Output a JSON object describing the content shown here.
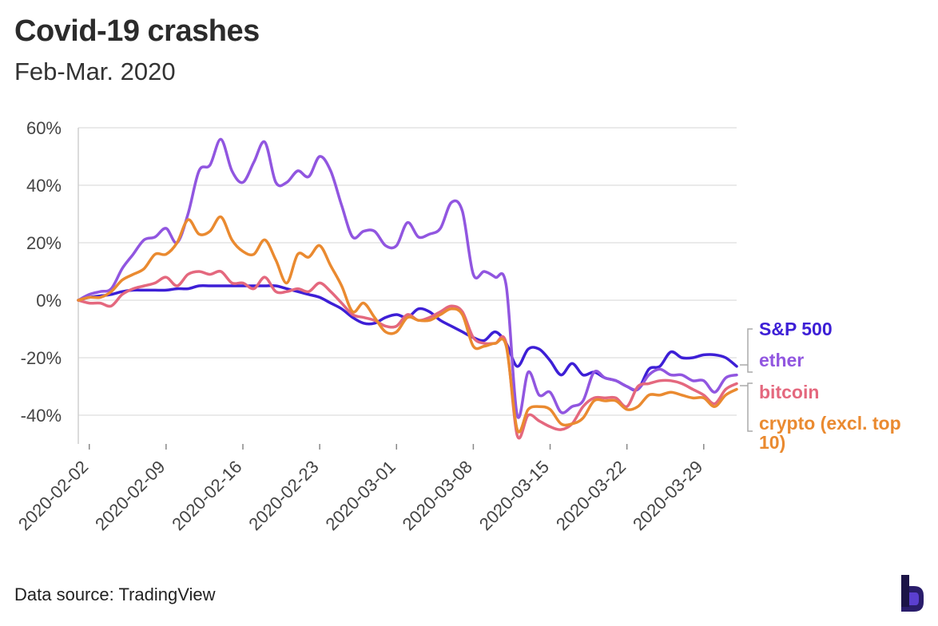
{
  "title": "Covid-19 crashes",
  "subtitle": "Feb-Mar. 2020",
  "footer": {
    "source": "Data source: TradingView"
  },
  "brand": {
    "logo": "b-logo-icon"
  },
  "chart_data": {
    "type": "line",
    "title": "Covid-19 crashes",
    "subtitle": "Feb-Mar. 2020",
    "xlabel": "",
    "ylabel": "",
    "xlim": [
      "2020-02-01",
      "2020-04-01"
    ],
    "ylim": [
      -50,
      60
    ],
    "y_ticks": [
      60,
      40,
      20,
      0,
      -20,
      -40
    ],
    "y_tick_labels": [
      "60%",
      "40%",
      "20%",
      "0%",
      "-20%",
      "-40%"
    ],
    "x_ticks": [
      "2020-02-02",
      "2020-02-09",
      "2020-02-16",
      "2020-02-23",
      "2020-03-01",
      "2020-03-08",
      "2020-03-15",
      "2020-03-22",
      "2020-03-29"
    ],
    "grid": true,
    "legend": "right, inline labels",
    "series": [
      {
        "name": "S&P 500",
        "color": "#3d1fd6",
        "x": [
          "2020-02-01",
          "2020-02-02",
          "2020-02-03",
          "2020-02-04",
          "2020-02-05",
          "2020-02-06",
          "2020-02-07",
          "2020-02-08",
          "2020-02-09",
          "2020-02-10",
          "2020-02-11",
          "2020-02-12",
          "2020-02-13",
          "2020-02-14",
          "2020-02-15",
          "2020-02-16",
          "2020-02-17",
          "2020-02-18",
          "2020-02-19",
          "2020-02-20",
          "2020-02-21",
          "2020-02-22",
          "2020-02-23",
          "2020-02-24",
          "2020-02-25",
          "2020-02-26",
          "2020-02-27",
          "2020-02-28",
          "2020-02-29",
          "2020-03-01",
          "2020-03-02",
          "2020-03-03",
          "2020-03-04",
          "2020-03-05",
          "2020-03-06",
          "2020-03-07",
          "2020-03-08",
          "2020-03-09",
          "2020-03-10",
          "2020-03-11",
          "2020-03-12",
          "2020-03-13",
          "2020-03-14",
          "2020-03-15",
          "2020-03-16",
          "2020-03-17",
          "2020-03-18",
          "2020-03-19",
          "2020-03-20",
          "2020-03-21",
          "2020-03-22",
          "2020-03-23",
          "2020-03-24",
          "2020-03-25",
          "2020-03-26",
          "2020-03-27",
          "2020-03-28",
          "2020-03-29",
          "2020-03-30",
          "2020-03-31",
          "2020-04-01"
        ],
        "values": [
          0,
          1,
          1.5,
          2,
          3,
          3.5,
          3.5,
          3.5,
          3.5,
          4,
          4,
          5,
          5,
          5,
          5,
          5,
          5,
          5,
          5,
          4,
          3,
          2,
          1,
          -1,
          -3,
          -6,
          -8,
          -8,
          -6,
          -5,
          -6,
          -3,
          -4,
          -7,
          -9,
          -11,
          -13,
          -14,
          -11,
          -15,
          -23,
          -17,
          -17,
          -21,
          -26,
          -22,
          -26,
          -25,
          -27,
          -28,
          -30,
          -31,
          -24,
          -23,
          -18,
          -20,
          -20,
          -19,
          -19,
          -20,
          -23
        ]
      },
      {
        "name": "ether",
        "color": "#9156e0",
        "x": [
          "2020-02-01",
          "2020-02-02",
          "2020-02-03",
          "2020-02-04",
          "2020-02-05",
          "2020-02-06",
          "2020-02-07",
          "2020-02-08",
          "2020-02-09",
          "2020-02-10",
          "2020-02-11",
          "2020-02-12",
          "2020-02-13",
          "2020-02-14",
          "2020-02-15",
          "2020-02-16",
          "2020-02-17",
          "2020-02-18",
          "2020-02-19",
          "2020-02-20",
          "2020-02-21",
          "2020-02-22",
          "2020-02-23",
          "2020-02-24",
          "2020-02-25",
          "2020-02-26",
          "2020-02-27",
          "2020-02-28",
          "2020-02-29",
          "2020-03-01",
          "2020-03-02",
          "2020-03-03",
          "2020-03-04",
          "2020-03-05",
          "2020-03-06",
          "2020-03-07",
          "2020-03-08",
          "2020-03-09",
          "2020-03-10",
          "2020-03-11",
          "2020-03-12",
          "2020-03-13",
          "2020-03-14",
          "2020-03-15",
          "2020-03-16",
          "2020-03-17",
          "2020-03-18",
          "2020-03-19",
          "2020-03-20",
          "2020-03-21",
          "2020-03-22",
          "2020-03-23",
          "2020-03-24",
          "2020-03-25",
          "2020-03-26",
          "2020-03-27",
          "2020-03-28",
          "2020-03-29",
          "2020-03-30",
          "2020-03-31",
          "2020-04-01"
        ],
        "values": [
          0,
          2,
          3,
          4,
          11,
          16,
          21,
          22,
          25,
          20,
          30,
          45,
          47,
          56,
          45,
          41,
          48,
          55,
          41,
          41,
          45,
          43,
          50,
          45,
          33,
          22,
          24,
          24,
          19,
          19,
          27,
          22,
          23,
          25,
          34,
          31,
          9,
          10,
          8,
          5,
          -40,
          -25,
          -33,
          -32,
          -39,
          -37,
          -35,
          -25,
          -27,
          -28,
          -30,
          -31,
          -26,
          -24,
          -26,
          -26,
          -28,
          -28,
          -32,
          -27,
          -26
        ]
      },
      {
        "name": "bitcoin",
        "color": "#e4687e",
        "x": [
          "2020-02-01",
          "2020-02-02",
          "2020-02-03",
          "2020-02-04",
          "2020-02-05",
          "2020-02-06",
          "2020-02-07",
          "2020-02-08",
          "2020-02-09",
          "2020-02-10",
          "2020-02-11",
          "2020-02-12",
          "2020-02-13",
          "2020-02-14",
          "2020-02-15",
          "2020-02-16",
          "2020-02-17",
          "2020-02-18",
          "2020-02-19",
          "2020-02-20",
          "2020-02-21",
          "2020-02-22",
          "2020-02-23",
          "2020-02-24",
          "2020-02-25",
          "2020-02-26",
          "2020-02-27",
          "2020-02-28",
          "2020-02-29",
          "2020-03-01",
          "2020-03-02",
          "2020-03-03",
          "2020-03-04",
          "2020-03-05",
          "2020-03-06",
          "2020-03-07",
          "2020-03-08",
          "2020-03-09",
          "2020-03-10",
          "2020-03-11",
          "2020-03-12",
          "2020-03-13",
          "2020-03-14",
          "2020-03-15",
          "2020-03-16",
          "2020-03-17",
          "2020-03-18",
          "2020-03-19",
          "2020-03-20",
          "2020-03-21",
          "2020-03-22",
          "2020-03-23",
          "2020-03-24",
          "2020-03-25",
          "2020-03-26",
          "2020-03-27",
          "2020-03-28",
          "2020-03-29",
          "2020-03-30",
          "2020-03-31",
          "2020-04-01"
        ],
        "values": [
          0,
          -1,
          -1,
          -2,
          2,
          4,
          5,
          6,
          8,
          5,
          9,
          10,
          9,
          10,
          6,
          6,
          4,
          8,
          3,
          3,
          4,
          3,
          6,
          3,
          -1,
          -5,
          -6,
          -7,
          -9,
          -9,
          -5,
          -7,
          -6,
          -4,
          -2,
          -4,
          -13,
          -15,
          -15,
          -15,
          -47,
          -40,
          -42,
          -44,
          -45,
          -43,
          -37,
          -34,
          -34,
          -34,
          -37,
          -30,
          -29,
          -28,
          -28,
          -29,
          -31,
          -33,
          -36,
          -31,
          -29
        ]
      },
      {
        "name": "crypto (excl. top 10)",
        "color": "#ea8a30",
        "x": [
          "2020-02-01",
          "2020-02-02",
          "2020-02-03",
          "2020-02-04",
          "2020-02-05",
          "2020-02-06",
          "2020-02-07",
          "2020-02-08",
          "2020-02-09",
          "2020-02-10",
          "2020-02-11",
          "2020-02-12",
          "2020-02-13",
          "2020-02-14",
          "2020-02-15",
          "2020-02-16",
          "2020-02-17",
          "2020-02-18",
          "2020-02-19",
          "2020-02-20",
          "2020-02-21",
          "2020-02-22",
          "2020-02-23",
          "2020-02-24",
          "2020-02-25",
          "2020-02-26",
          "2020-02-27",
          "2020-02-28",
          "2020-02-29",
          "2020-03-01",
          "2020-03-02",
          "2020-03-03",
          "2020-03-04",
          "2020-03-05",
          "2020-03-06",
          "2020-03-07",
          "2020-03-08",
          "2020-03-09",
          "2020-03-10",
          "2020-03-11",
          "2020-03-12",
          "2020-03-13",
          "2020-03-14",
          "2020-03-15",
          "2020-03-16",
          "2020-03-17",
          "2020-03-18",
          "2020-03-19",
          "2020-03-20",
          "2020-03-21",
          "2020-03-22",
          "2020-03-23",
          "2020-03-24",
          "2020-03-25",
          "2020-03-26",
          "2020-03-27",
          "2020-03-28",
          "2020-03-29",
          "2020-03-30",
          "2020-03-31",
          "2020-04-01"
        ],
        "values": [
          0,
          1,
          1,
          3,
          7,
          9,
          11,
          16,
          16,
          20,
          28,
          23,
          24,
          29,
          21,
          17,
          16,
          21,
          14,
          6,
          16,
          15,
          19,
          12,
          5,
          -4,
          -1,
          -6,
          -11,
          -11,
          -6,
          -7,
          -7,
          -5,
          -3,
          -5,
          -16,
          -16,
          -15,
          -16,
          -45,
          -38,
          -37,
          -38,
          -43,
          -43,
          -41,
          -35,
          -35,
          -35,
          -38,
          -37,
          -33,
          -33,
          -32,
          -33,
          -34,
          -34,
          -37,
          -33,
          -31
        ]
      }
    ]
  }
}
